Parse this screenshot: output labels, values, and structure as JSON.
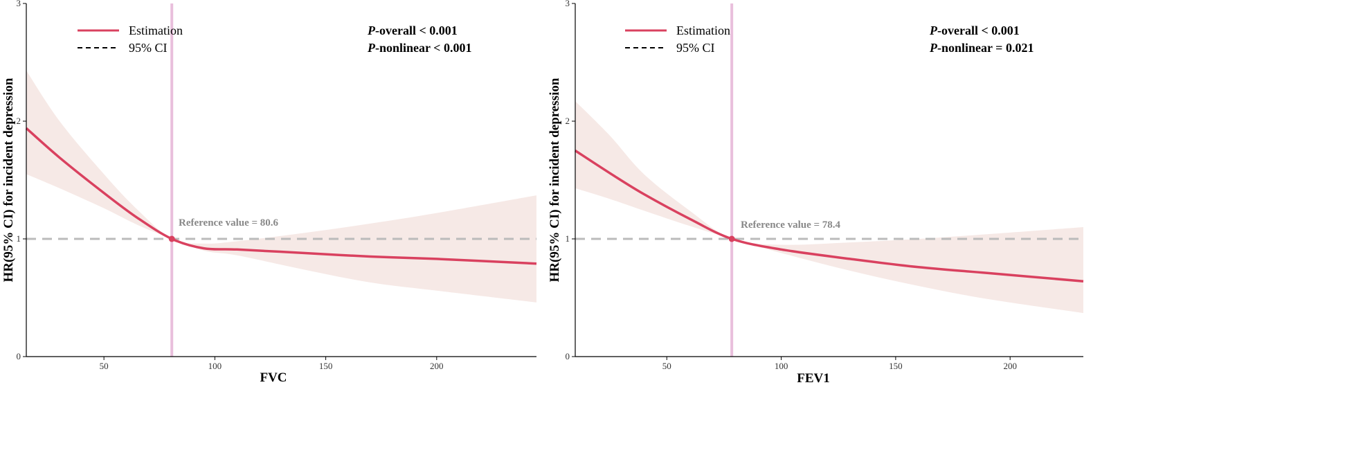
{
  "colors": {
    "estimate": "#d9415f",
    "band": "#f6e9e6",
    "reference_line": "#e9bfdc",
    "hr_line": "#bbbbbb",
    "axis": "#000000"
  },
  "chart_data": [
    {
      "type": "line",
      "xlabel": "FVC",
      "ylabel": "HR(95% CI) for incident depression",
      "xlim": [
        15,
        245
      ],
      "ylim": [
        0,
        3
      ],
      "x_ticks": [
        "50",
        "100",
        "150",
        "200"
      ],
      "x_tick_values": [
        50,
        100,
        150,
        200
      ],
      "y_ticks": [
        "0",
        "1",
        "2",
        "3"
      ],
      "y_tick_values": [
        0,
        1,
        2,
        3
      ],
      "legend": {
        "estimation_label": "Estimation",
        "ci_label": "95% CI",
        "position": "top-left"
      },
      "p_overall": {
        "prefix": "P",
        "rest": "-overall < 0.001"
      },
      "p_nonlinear": {
        "prefix": "P",
        "rest": "-nonlinear < 0.001"
      },
      "reference": {
        "value": 80.6,
        "label": "Reference value = 80.6"
      },
      "series": [
        {
          "name": "Estimation",
          "x": [
            15,
            30,
            50,
            65,
            80.6,
            95,
            110,
            140,
            170,
            200,
            245
          ],
          "values": [
            1.94,
            1.69,
            1.39,
            1.18,
            1.0,
            0.92,
            0.91,
            0.88,
            0.85,
            0.83,
            0.79
          ]
        },
        {
          "name": "95% CI lower",
          "x": [
            15,
            30,
            50,
            65,
            80.6,
            95,
            110,
            140,
            170,
            200,
            245
          ],
          "values": [
            1.55,
            1.43,
            1.26,
            1.12,
            1.0,
            0.9,
            0.86,
            0.74,
            0.63,
            0.56,
            0.46
          ]
        },
        {
          "name": "95% CI upper",
          "x": [
            15,
            30,
            50,
            65,
            80.6,
            95,
            110,
            140,
            170,
            200,
            245
          ],
          "values": [
            2.43,
            2.0,
            1.55,
            1.25,
            1.0,
            0.96,
            0.98,
            1.05,
            1.13,
            1.22,
            1.37
          ]
        }
      ]
    },
    {
      "type": "line",
      "xlabel": "FEV1",
      "ylabel": "HR(95% CI) for incident depression",
      "xlim": [
        10,
        232
      ],
      "ylim": [
        0,
        3
      ],
      "x_ticks": [
        "50",
        "100",
        "150",
        "200"
      ],
      "x_tick_values": [
        50,
        100,
        150,
        200
      ],
      "y_ticks": [
        "0",
        "1",
        "2",
        "3"
      ],
      "y_tick_values": [
        0,
        1,
        2,
        3
      ],
      "legend": {
        "estimation_label": "Estimation",
        "ci_label": "95% CI",
        "position": "top-left"
      },
      "p_overall": {
        "prefix": "P",
        "rest": "-overall < 0.001"
      },
      "p_nonlinear": {
        "prefix": "P",
        "rest": "-nonlinear = 0.021"
      },
      "reference": {
        "value": 78.4,
        "label": "Reference value = 78.4"
      },
      "series": [
        {
          "name": "Estimation",
          "x": [
            10,
            25,
            40,
            60,
            78.4,
            100,
            130,
            160,
            190,
            232
          ],
          "values": [
            1.75,
            1.56,
            1.38,
            1.17,
            1.0,
            0.91,
            0.83,
            0.76,
            0.71,
            0.64
          ]
        },
        {
          "name": "95% CI lower",
          "x": [
            10,
            25,
            40,
            60,
            78.4,
            100,
            130,
            160,
            190,
            232
          ],
          "values": [
            1.43,
            1.34,
            1.24,
            1.11,
            1.0,
            0.88,
            0.73,
            0.6,
            0.49,
            0.37
          ]
        },
        {
          "name": "95% CI upper",
          "x": [
            10,
            25,
            40,
            60,
            78.4,
            100,
            130,
            160,
            190,
            232
          ],
          "values": [
            2.17,
            1.88,
            1.55,
            1.24,
            1.0,
            0.95,
            0.97,
            1.0,
            1.04,
            1.1
          ]
        }
      ]
    }
  ]
}
